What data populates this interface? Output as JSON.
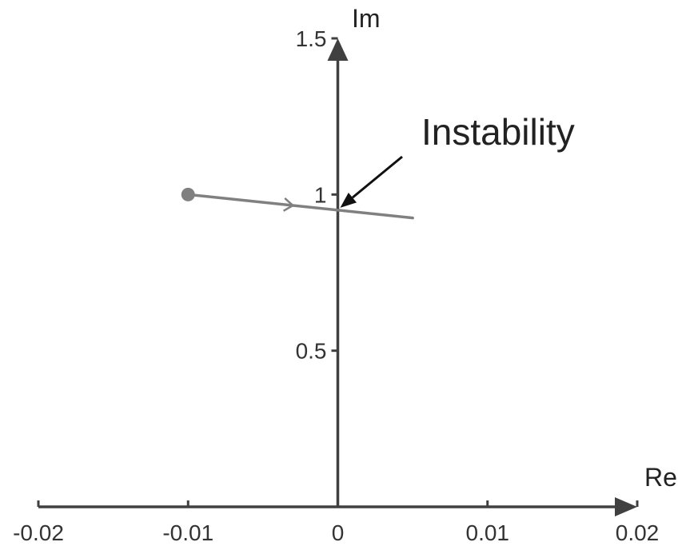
{
  "chart_data": {
    "type": "line",
    "title": "",
    "xlabel": "Re",
    "ylabel": "Im",
    "xlim": [
      -0.02,
      0.02
    ],
    "ylim": [
      0,
      1.5
    ],
    "grid": false,
    "legend": "none",
    "x_ticks": [
      -0.02,
      -0.01,
      0,
      0.01,
      0.02
    ],
    "x_tick_labels": [
      "-0.02",
      "-0.01",
      "0",
      "0.01",
      "0.02"
    ],
    "y_ticks": [
      0.5,
      1,
      1.5
    ],
    "y_tick_labels": [
      "0.5",
      "1",
      "1.5"
    ],
    "series": [
      {
        "x": [
          -0.01,
          0.005
        ],
        "y": [
          1.0,
          0.925
        ],
        "start_marker": "dot",
        "direction": "increasing-x",
        "color": "#808080"
      }
    ],
    "annotations": [
      {
        "text": "Instability",
        "x": 0,
        "y": 0.95
      }
    ],
    "axis_color": "#404040"
  }
}
